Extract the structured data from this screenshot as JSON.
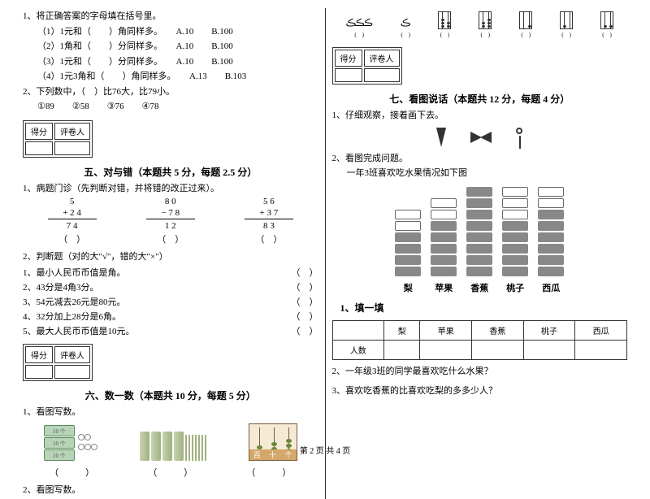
{
  "left": {
    "q1": {
      "stem": "1、将正确答案的字母填在括号里。",
      "items": [
        {
          "t": "（1）1元和（　　）角同样多。",
          "a": "A.10",
          "b": "B.100"
        },
        {
          "t": "（2）1角和（　　）分同样多。",
          "a": "A.10",
          "b": "B.100"
        },
        {
          "t": "（3）1元和（　　）分同样多。",
          "a": "A.10",
          "b": "B.100"
        },
        {
          "t": "（4）1元3角和（　　）角同样多。",
          "a": "A.13",
          "b": "B.103"
        }
      ]
    },
    "q2": {
      "stem": "2、下列数中，（　）比76大，比79小。",
      "opts": "①89　　②58　　③76　　④78"
    },
    "score_label_1": "得分",
    "score_label_2": "评卷人",
    "sec5_title": "五、对与错（本题共 5 分，每题 2.5 分）",
    "q5_1": {
      "stem": "1、病题门诊（先判断对错，并将错的改正过来）。",
      "cols": [
        {
          "a": "5",
          "b": "+ 2 4",
          "s": "7 4"
        },
        {
          "a": "8 0",
          "b": "− 7 8",
          "s": "1 2"
        },
        {
          "a": "5 6",
          "b": "+ 3 7",
          "s": "8 3"
        }
      ]
    },
    "q5_2": {
      "stem": "2、判断题（对的大\"√\"，错的大\"×\"）",
      "items": [
        "1、最小人民币币值是角。",
        "2、43分是4角3分。",
        "3、54元减去26元是80元。",
        "4、32分加上28分是6角。",
        "5、最大人民币币值是10元。"
      ]
    },
    "sec6_title": "六、数一数（本题共 10 分，每题 5 分）",
    "q6_1": "1、看图写数。",
    "q6_2": "2、看图写数。",
    "cube_label": "10 个",
    "abacus_labels": [
      "百",
      "十",
      "个"
    ]
  },
  "right": {
    "sec7_title": "七、看图说话（本题共 12 分，每题 4 分）",
    "q7_1": "1、仔细观察，接着画下去。",
    "q7_2": "2、看图完成问题。",
    "q7_2_sub": "一年3班喜欢吃水果情况如下图",
    "fruits": [
      "梨",
      "苹果",
      "香蕉",
      "桃子",
      "西瓜"
    ],
    "chart_data": [
      {
        "label": "梨",
        "white": 2,
        "gray": 4
      },
      {
        "label": "苹果",
        "white": 2,
        "gray": 5
      },
      {
        "label": "香蕉",
        "white": 0,
        "gray": 8
      },
      {
        "label": "桃子",
        "white": 3,
        "gray": 5
      },
      {
        "label": "西瓜",
        "white": 2,
        "gray": 6
      }
    ],
    "fill_title": "1、填一填",
    "table_row_label": "人数",
    "q_a": "2、一年级3班的同学最喜欢吃什么水果？",
    "q_b": "3、喜欢吃香蕉的比喜欢吃梨的多多少人？"
  },
  "footer": "第 2 页 共 4 页"
}
